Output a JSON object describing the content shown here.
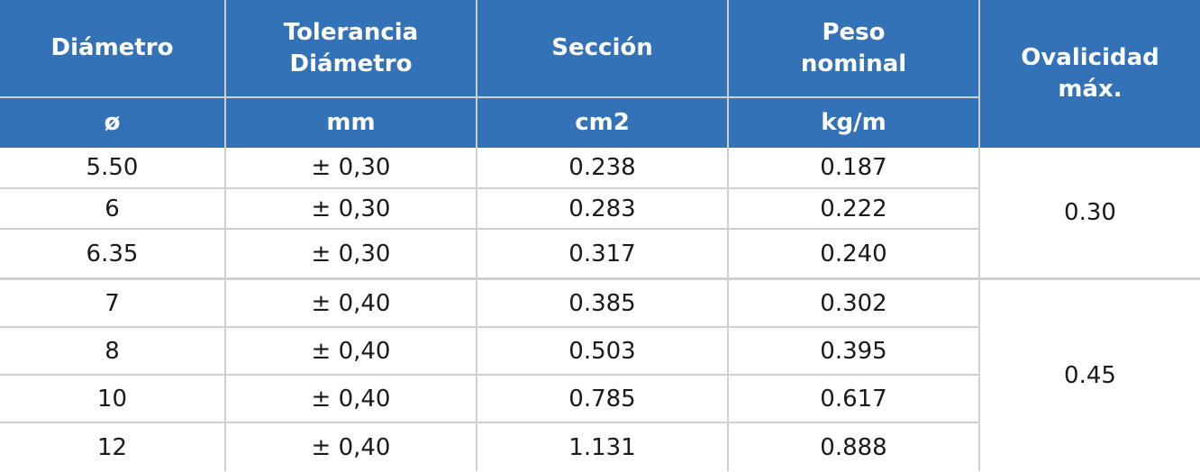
{
  "header": {
    "diametro": "Diámetro",
    "tolerancia_1": "Tolerancia",
    "tolerancia_2": "Diámetro",
    "seccion": "Sección",
    "peso_1": "Peso",
    "peso_2": "nominal",
    "ovalicidad_1": "Ovalicidad",
    "ovalicidad_2": "máx."
  },
  "units": {
    "diametro": "ø",
    "tolerancia": "mm",
    "seccion": "cm2",
    "peso": "kg/m"
  },
  "rows": [
    {
      "diametro": "5.50",
      "tolerancia": "± 0,30",
      "seccion": "0.238",
      "peso": "0.187"
    },
    {
      "diametro": "6",
      "tolerancia": "± 0,30",
      "seccion": "0.283",
      "peso": "0.222"
    },
    {
      "diametro": "6.35",
      "tolerancia": "± 0,30",
      "seccion": "0.317",
      "peso": "0.240"
    },
    {
      "diametro": "7",
      "tolerancia": "± 0,40",
      "seccion": "0.385",
      "peso": "0.302"
    },
    {
      "diametro": "8",
      "tolerancia": "± 0,40",
      "seccion": "0.503",
      "peso": "0.395"
    },
    {
      "diametro": "10",
      "tolerancia": "± 0,40",
      "seccion": "0.785",
      "peso": "0.617"
    },
    {
      "diametro": "12",
      "tolerancia": "± 0,40",
      "seccion": "1.131",
      "peso": "0.888"
    }
  ],
  "ovalicidad_groups": [
    "0.30",
    "0.45"
  ],
  "colors": {
    "header_bg": "#3372b6",
    "header_text": "#ffffff",
    "grid": "#cfcfcf",
    "body_text": "#1a1a1a"
  }
}
